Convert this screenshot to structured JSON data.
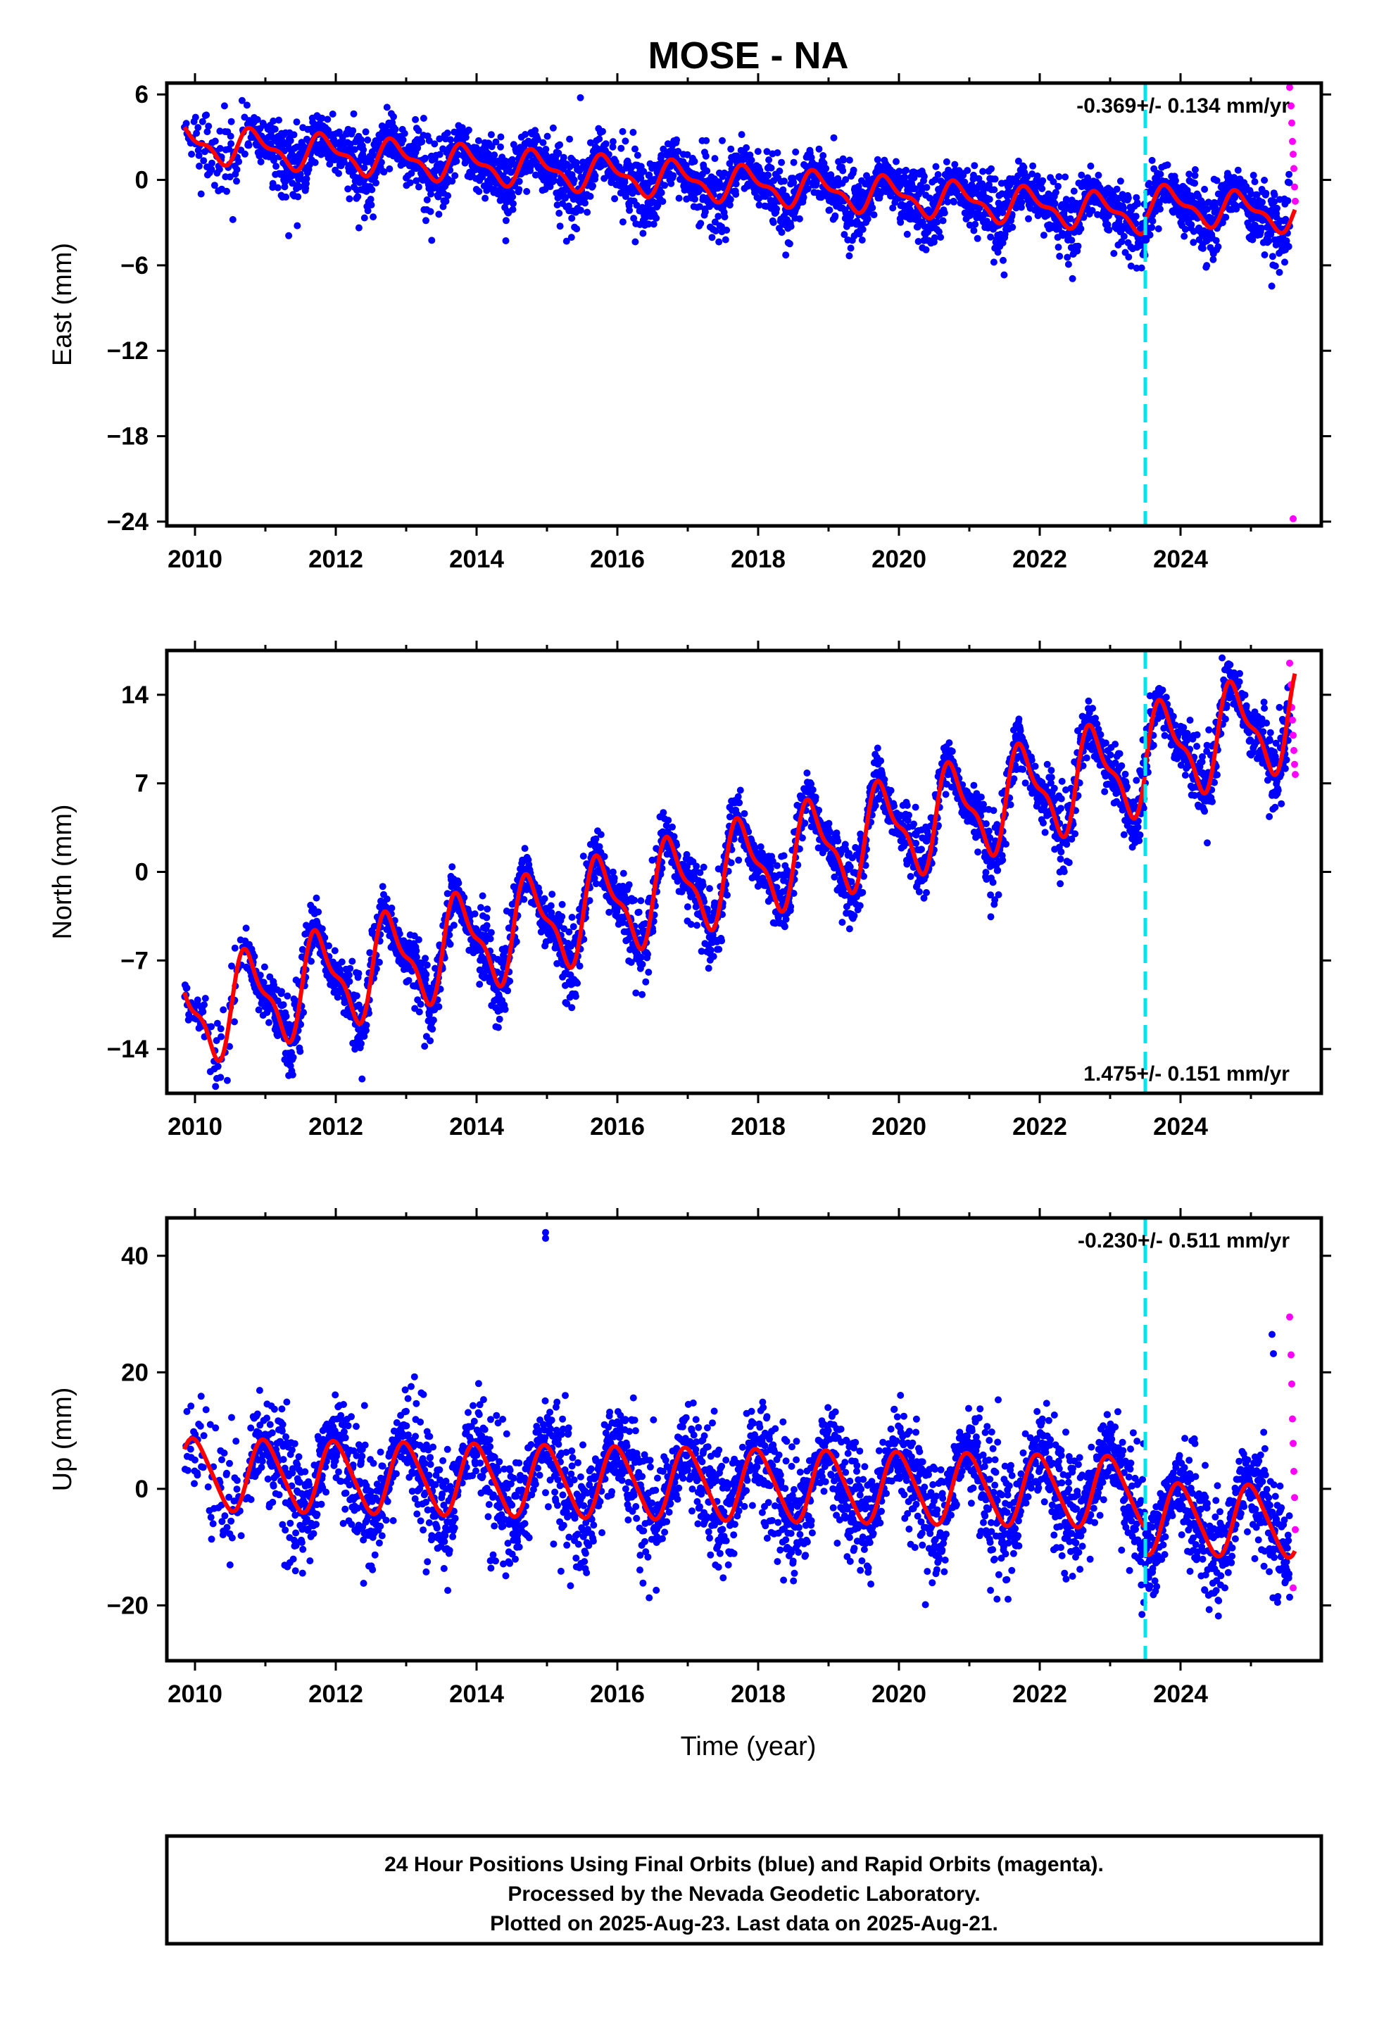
{
  "title": "MOSE - NA",
  "xlabel": "Time (year)",
  "footer": {
    "line1": "24 Hour Positions Using Final Orbits (blue) and Rapid Orbits (magenta).",
    "line2": "Processed by the Nevada Geodetic Laboratory.",
    "line3": "Plotted on 2025-Aug-23. Last data on 2025-Aug-21."
  },
  "colors": {
    "final_orbits": "#0000ff",
    "rapid_orbits": "#ff00ff",
    "model_fit": "#ff0000",
    "equipment_change": "#00e5ee"
  },
  "chart_data": [
    {
      "type": "scatter",
      "name": "east",
      "ylabel": "East (mm)",
      "rate_label": "-0.369+/- 0.134 mm/yr",
      "rate_position": "top-right",
      "xlim": [
        2009.6,
        2026.0
      ],
      "ylim": [
        -24.3,
        6.8
      ],
      "x_ticks": [
        2010,
        2012,
        2014,
        2016,
        2018,
        2020,
        2022,
        2024
      ],
      "y_ticks": [
        6,
        0,
        -6,
        -12,
        -18,
        -24
      ],
      "start": 2009.85,
      "end": 2025.63,
      "break_year": 2023.5,
      "model": {
        "offset": 2.6,
        "trend": -0.369,
        "amp": 1.1,
        "phase": 0.6,
        "semi_amp": 0.5,
        "offset_after_break": 0.8
      },
      "noise": 1.1,
      "rapid": {
        "x": [
          2025.55,
          2025.57,
          2025.58,
          2025.59,
          2025.6,
          2025.61,
          2025.62,
          2025.63,
          2025.6
        ],
        "y": [
          6.5,
          5.2,
          4.0,
          2.7,
          1.8,
          0.8,
          -0.5,
          -1.5,
          -23.8
        ]
      }
    },
    {
      "type": "scatter",
      "name": "north",
      "ylabel": "North (mm)",
      "rate_label": "1.475+/- 0.151 mm/yr",
      "rate_position": "bottom-right",
      "xlim": [
        2009.6,
        2026.0
      ],
      "ylim": [
        -17.5,
        17.5
      ],
      "x_ticks": [
        2010,
        2012,
        2014,
        2016,
        2018,
        2020,
        2022,
        2024
      ],
      "y_ticks": [
        14,
        7,
        0,
        -7,
        -14
      ],
      "start": 2009.85,
      "end": 2025.63,
      "break_year": 2023.5,
      "model": {
        "offset": -11.5,
        "trend": 1.475,
        "amp": 3.5,
        "phase": 0.52,
        "semi_amp": 1.3,
        "offset_after_break": 0.5
      },
      "noise": 1.2,
      "rapid": {
        "x": [
          2025.55,
          2025.57,
          2025.58,
          2025.59,
          2025.6,
          2025.61,
          2025.62,
          2025.63
        ],
        "y": [
          16.5,
          14.8,
          13.0,
          12.0,
          10.8,
          9.6,
          8.5,
          7.7
        ]
      }
    },
    {
      "type": "scatter",
      "name": "up",
      "ylabel": "Up (mm)",
      "rate_label": "-0.230+/- 0.511 mm/yr",
      "rate_position": "top-right",
      "xlim": [
        2009.6,
        2026.0
      ],
      "ylim": [
        -29.5,
        46.5
      ],
      "x_ticks": [
        2010,
        2012,
        2014,
        2016,
        2018,
        2020,
        2022,
        2024
      ],
      "y_ticks": [
        40,
        20,
        0,
        -20
      ],
      "start": 2009.85,
      "end": 2025.63,
      "break_year": 2023.5,
      "model": {
        "offset": 2.5,
        "trend": -0.23,
        "amp": 6.0,
        "phase": 0.75,
        "semi_amp": 0.8,
        "offset_after_break": -4.5
      },
      "noise": 4.5,
      "outliers": {
        "x": [
          2014.98,
          2014.98,
          2025.3,
          2025.32
        ],
        "y": [
          44,
          43,
          26.5,
          23.2
        ]
      },
      "rapid": {
        "x": [
          2025.55,
          2025.57,
          2025.58,
          2025.59,
          2025.6,
          2025.61,
          2025.62,
          2025.63,
          2025.6
        ],
        "y": [
          29.5,
          23.0,
          18.0,
          12.0,
          7.8,
          3.0,
          -1.5,
          -7.0,
          -17.0
        ]
      }
    }
  ]
}
